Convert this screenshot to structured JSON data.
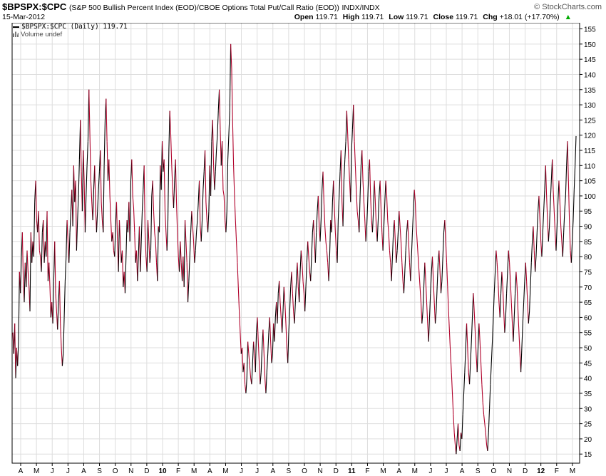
{
  "header": {
    "symbol": "$BPSPX:$CPC",
    "description": "(S&P 500 Bullish Percent Index (EOD)/CBOE Options Total Put/Call Ratio (EOD))",
    "exchange": "INDX/INDX",
    "date": "15-Mar-2012",
    "brand": "© StockCharts.com",
    "open_label": "Open",
    "open_value": "119.71",
    "high_label": "High",
    "high_value": "119.71",
    "low_label": "Low",
    "low_value": "119.71",
    "close_label": "Close",
    "close_value": "119.71",
    "chg_label": "Chg",
    "chg_value": "+18.01 (+17.70%)",
    "chg_arrow": "▲"
  },
  "legend": {
    "series_label": "$BPSPX:$CPC (Daily) 119.71",
    "volume_label": "Volume undef"
  },
  "colors": {
    "up": "#000000",
    "down": "#b0002a",
    "grid": "#dddddd",
    "axis": "#000000"
  },
  "chart_data": {
    "type": "line",
    "ylim": [
      12,
      157
    ],
    "yticks": [
      15,
      20,
      25,
      30,
      35,
      40,
      45,
      50,
      55,
      60,
      65,
      70,
      75,
      80,
      85,
      90,
      95,
      100,
      105,
      110,
      115,
      120,
      125,
      130,
      135,
      140,
      145,
      150,
      155
    ],
    "xticks": [
      "A",
      "M",
      "J",
      "J",
      "A",
      "S",
      "O",
      "N",
      "D",
      "10",
      "F",
      "M",
      "A",
      "M",
      "J",
      "J",
      "A",
      "S",
      "O",
      "N",
      "D",
      "11",
      "F",
      "M",
      "A",
      "M",
      "J",
      "J",
      "A",
      "S",
      "O",
      "N",
      "D",
      "12",
      "F",
      "M"
    ],
    "series": [
      {
        "values": [
          55,
          48,
          58,
          40,
          50,
          44,
          52,
          75,
          68,
          80,
          88,
          72,
          65,
          78,
          70,
          82,
          75,
          70,
          62,
          88,
          78,
          85,
          80,
          98,
          105,
          92,
          88,
          95,
          82,
          80,
          75,
          88,
          92,
          78,
          85,
          80,
          95,
          72,
          78,
          70,
          60,
          65,
          58,
          72,
          85,
          68,
          62,
          56,
          65,
          72,
          58,
          50,
          44,
          48,
          60,
          72,
          80,
          92,
          85,
          78,
          88,
          95,
          102,
          90,
          110,
          98,
          105,
          82,
          92,
          100,
          112,
          125,
          108,
          95,
          115,
          105,
          88,
          100,
          110,
          118,
          135,
          120,
          105,
          98,
          92,
          102,
          110,
          96,
          88,
          95,
          102,
          108,
          115,
          98,
          92,
          88,
          110,
          125,
          132,
          118,
          105,
          112,
          100,
          92,
          85,
          88,
          82,
          80,
          90,
          98,
          85,
          75,
          92,
          85,
          78,
          82,
          70,
          75,
          68,
          80,
          92,
          88,
          98,
          85,
          105,
          112,
          100,
          96,
          88,
          78,
          82,
          72,
          80,
          90,
          75,
          85,
          95,
          102,
          110,
          88,
          80,
          75,
          92,
          85,
          78,
          82,
          100,
          105,
          95,
          88,
          85,
          78,
          72,
          90,
          88,
          110,
          102,
          118,
          108,
          112,
          95,
          88,
          82,
          92,
          115,
          128,
          120,
          110,
          102,
          96,
          105,
          112,
          98,
          88,
          80,
          75,
          85,
          78,
          72,
          80,
          70,
          92,
          85,
          78,
          65,
          72,
          80,
          88,
          95,
          90,
          85,
          78,
          82,
          88,
          92,
          98,
          105,
          90,
          85,
          92,
          102,
          108,
          115,
          98,
          92,
          88,
          95,
          110,
          100,
          118,
          125,
          110,
          102,
          108,
          115,
          120,
          128,
          135,
          122,
          110,
          118,
          102,
          100,
          92,
          88,
          95,
          112,
          120,
          128,
          150,
          142,
          125,
          110,
          100,
          92,
          85,
          78,
          70,
          62,
          55,
          48,
          50,
          42,
          45,
          38,
          35,
          40,
          52,
          48,
          44,
          40,
          38,
          45,
          52,
          48,
          42,
          55,
          60,
          52,
          45,
          38,
          42,
          50,
          56,
          48,
          40,
          35,
          42,
          48,
          55,
          60,
          52,
          45,
          48,
          58,
          52,
          60,
          65,
          58,
          68,
          72,
          65,
          60,
          55,
          62,
          70,
          65,
          58,
          50,
          45,
          55,
          62,
          70,
          75,
          68,
          62,
          58,
          65,
          72,
          78,
          70,
          65,
          75,
          82,
          78,
          72,
          68,
          62,
          70,
          78,
          85,
          80,
          75,
          72,
          80,
          88,
          92,
          85,
          78,
          88,
          95,
          100,
          90,
          85,
          92,
          102,
          108,
          98,
          90,
          85,
          82,
          78,
          72,
          80,
          92,
          88,
          98,
          105,
          96,
          88,
          82,
          78,
          92,
          100,
          108,
          115,
          98,
          90,
          105,
          112,
          118,
          128,
          120,
          112,
          105,
          98,
          115,
          122,
          130,
          118,
          110,
          102,
          95,
          92,
          88,
          100,
          110,
          115,
          105,
          98,
          92,
          85,
          90,
          98,
          108,
          112,
          100,
          92,
          88,
          95,
          105,
          98,
          90,
          85,
          92,
          100,
          105,
          96,
          88,
          82,
          90,
          98,
          105,
          100,
          92,
          88,
          82,
          78,
          72,
          80,
          88,
          92,
          85,
          78,
          82,
          88,
          95,
          90,
          85,
          78,
          72,
          68,
          75,
          82,
          88,
          92,
          85,
          78,
          72,
          80,
          88,
          95,
          102,
          98,
          90,
          85,
          80,
          75,
          70,
          65,
          58,
          62,
          70,
          78,
          72,
          65,
          58,
          52,
          60,
          68,
          75,
          80,
          72,
          65,
          58,
          62,
          70,
          78,
          82,
          75,
          68,
          72,
          80,
          88,
          92,
          85,
          78,
          70,
          62,
          55,
          48,
          42,
          35,
          28,
          22,
          18,
          15,
          20,
          25,
          18,
          16,
          22,
          20,
          28,
          35,
          42,
          50,
          58,
          50,
          42,
          38,
          45,
          52,
          60,
          68,
          62,
          55,
          48,
          42,
          50,
          58,
          52,
          45,
          38,
          32,
          28,
          25,
          22,
          18,
          16,
          22,
          30,
          38,
          45,
          52,
          60,
          68,
          75,
          82,
          78,
          72,
          65,
          60,
          68,
          75,
          70,
          62,
          55,
          60,
          68,
          75,
          82,
          78,
          72,
          65,
          58,
          52,
          60,
          68,
          75,
          70,
          62,
          55,
          48,
          42,
          50,
          58,
          65,
          72,
          78,
          72,
          65,
          58,
          62,
          70,
          78,
          85,
          90,
          82,
          75,
          80,
          88,
          95,
          100,
          92,
          85,
          80,
          88,
          95,
          102,
          110,
          100,
          92,
          85,
          90,
          98,
          105,
          112,
          102,
          95,
          88,
          82,
          90,
          98,
          105,
          98,
          90,
          85,
          80,
          88,
          95,
          100,
          110,
          118,
          105,
          92,
          82,
          78,
          85,
          92,
          102,
          110,
          119.71
        ]
      }
    ]
  }
}
